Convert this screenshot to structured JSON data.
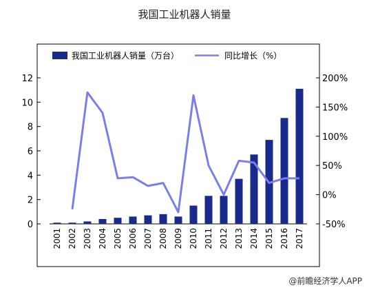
{
  "title": "我国工业机器人销量",
  "source": "@前瞻经济学人APP",
  "colors": {
    "bar": "#1a2a8c",
    "line": "#7b7ee8",
    "axis": "#000000"
  },
  "chart_data": {
    "type": "bar",
    "title": "我国工业机器人销量",
    "categories": [
      "2001",
      "2002",
      "2003",
      "2004",
      "2005",
      "2006",
      "2007",
      "2008",
      "2009",
      "2010",
      "2011",
      "2012",
      "2013",
      "2014",
      "2015",
      "2016",
      "2017"
    ],
    "series": [
      {
        "name": "我国工业机器人销量（万台）",
        "type": "bar",
        "axis": "left",
        "values": [
          0.1,
          0.1,
          0.2,
          0.4,
          0.5,
          0.6,
          0.7,
          0.8,
          0.6,
          1.5,
          2.3,
          2.3,
          3.7,
          5.7,
          6.9,
          8.7,
          11.1
        ]
      },
      {
        "name": "同比增长（%）",
        "type": "line",
        "axis": "right",
        "values": [
          null,
          -25,
          175,
          140,
          28,
          30,
          15,
          20,
          -30,
          170,
          50,
          0,
          58,
          55,
          20,
          28,
          28
        ]
      }
    ],
    "ylim_left": [
      0,
      12
    ],
    "yticks_left": [
      "0",
      "2",
      "4",
      "6",
      "8",
      "10",
      "12"
    ],
    "ylim_right": [
      -50,
      200
    ],
    "yticks_right": [
      "-50%",
      "0%",
      "50%",
      "100%",
      "150%",
      "200%"
    ],
    "legend_position": "top"
  }
}
